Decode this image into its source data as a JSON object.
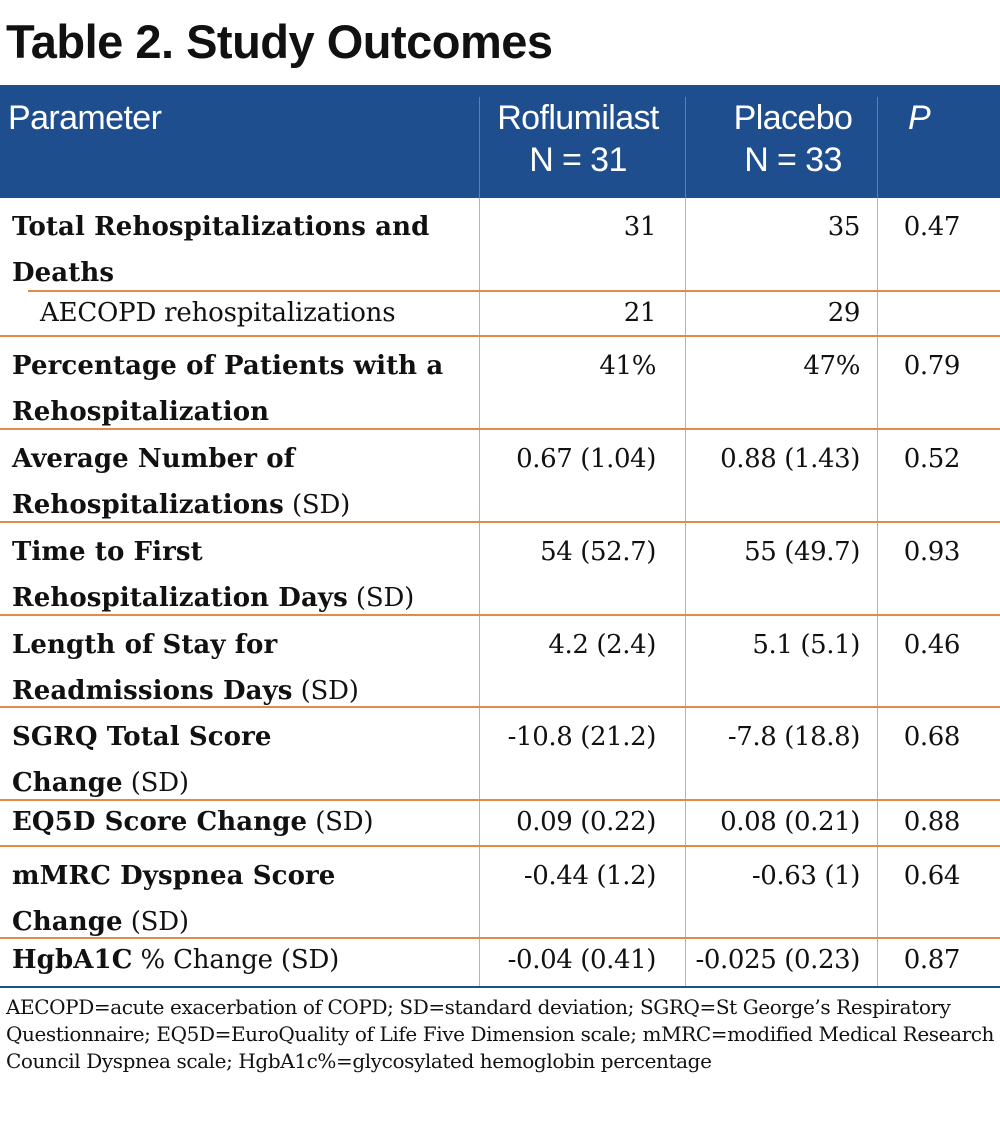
{
  "title": "Table 2. Study Outcomes",
  "header": {
    "parameter": "Parameter",
    "col1_name": "Roflumilast",
    "col1_n": "N = 31",
    "col2_name": "Placebo",
    "col2_n": "N = 33",
    "p_label": "P"
  },
  "rows": [
    {
      "bold": "Total Rehospitalizations and Deaths",
      "normal": "",
      "roflumilast": "31",
      "placebo": "35",
      "p": "0.47"
    },
    {
      "bold": "",
      "normal": "AECOPD rehospitalizations",
      "roflumilast": "21",
      "placebo": "29",
      "p": ""
    },
    {
      "bold": "Percentage of Patients with a Rehospitalization",
      "normal": "",
      "roflumilast": "41%",
      "placebo": "47%",
      "p": "0.79"
    },
    {
      "bold": "Average Number of Rehospitalizations",
      "normal": " (SD)",
      "roflumilast": "0.67 (1.04)",
      "placebo": "0.88 (1.43)",
      "p": "0.52"
    },
    {
      "bold": "Time to First Rehospitalization Days",
      "normal": " (SD)",
      "roflumilast": "54 (52.7)",
      "placebo": "55 (49.7)",
      "p": "0.93"
    },
    {
      "bold": "Length of Stay for Readmissions Days",
      "normal": " (SD)",
      "roflumilast": "4.2 (2.4)",
      "placebo": "5.1 (5.1)",
      "p": "0.46"
    },
    {
      "bold": "SGRQ Total Score Change",
      "normal": " (SD)",
      "roflumilast": "-10.8 (21.2)",
      "placebo": "-7.8 (18.8)",
      "p": "0.68"
    },
    {
      "bold": "EQ5D Score Change",
      "normal": " (SD)",
      "roflumilast": "0.09 (0.22)",
      "placebo": "0.08 (0.21)",
      "p": "0.88"
    },
    {
      "bold": "mMRC Dyspnea Score Change",
      "normal": " (SD)",
      "roflumilast": "-0.44 (1.2)",
      "placebo": "-0.63 (1)",
      "p": "0.64"
    },
    {
      "bold": "HgbA1C",
      "normal": " % Change (SD)",
      "roflumilast": "-0.04 (0.41)",
      "placebo": "-0.025 (0.23)",
      "p": "0.87"
    }
  ],
  "footnote": "AECOPD=acute exacerbation of COPD; SD=standard deviation; SGRQ=St George’s Respiratory Questionnaire; EQ5D=EuroQuality of Life Five Dimension scale; mMRC=modified Medical Research Council Dyspnea scale; HgbA1c%=glycosylated hemoglobin percentage",
  "colors": {
    "header_bg": "#1f4e8f",
    "row_rule": "#e58a46"
  }
}
